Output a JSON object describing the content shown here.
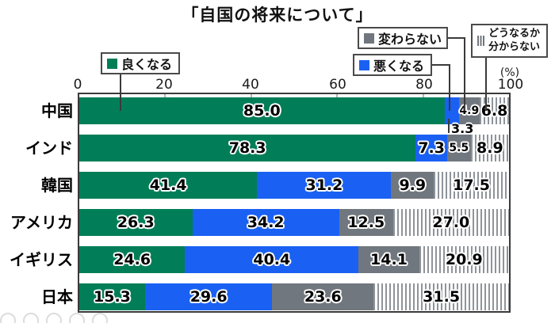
{
  "title": "「自国の将来について」",
  "axis": {
    "ticks": [
      "0",
      "20",
      "40",
      "60",
      "80",
      "100"
    ],
    "unit_label": "(%)"
  },
  "legend": {
    "better": "良くなる",
    "worse": "悪くなる",
    "same": "変わらない",
    "unknown_line1": "どうなるか",
    "unknown_line2": "分からない"
  },
  "colors": {
    "better": "#017e57",
    "worse": "#1a61f3",
    "same": "#71777e",
    "stripe": "#8e949a",
    "frame": "#3a3a3a"
  },
  "rows": [
    {
      "label": "中国",
      "display": [
        "85.0",
        "3.3",
        "4.9",
        "6.8"
      ]
    },
    {
      "label": "インド",
      "display": [
        "78.3",
        "7.3",
        "5.5",
        "8.9"
      ]
    },
    {
      "label": "韓国",
      "display": [
        "41.4",
        "31.2",
        "9.9",
        "17.5"
      ]
    },
    {
      "label": "アメリカ",
      "display": [
        "26.3",
        "34.2",
        "12.5",
        "27.0"
      ]
    },
    {
      "label": "イギリス",
      "display": [
        "24.6",
        "40.4",
        "14.1",
        "20.9"
      ]
    },
    {
      "label": "日本",
      "display": [
        "15.3",
        "29.6",
        "23.6",
        "31.5"
      ]
    }
  ],
  "chart_data": {
    "type": "bar",
    "orientation": "horizontal",
    "stacked": true,
    "title": "「自国の将来について」",
    "categories": [
      "中国",
      "インド",
      "韓国",
      "アメリカ",
      "イギリス",
      "日本"
    ],
    "series": [
      {
        "name": "良くなる",
        "color": "#017e57",
        "values": [
          85.0,
          78.3,
          41.4,
          26.3,
          24.6,
          15.3
        ]
      },
      {
        "name": "悪くなる",
        "color": "#1a61f3",
        "values": [
          3.3,
          7.3,
          31.2,
          34.2,
          40.4,
          29.6
        ]
      },
      {
        "name": "変わらない",
        "color": "#71777e",
        "values": [
          4.9,
          5.5,
          9.9,
          12.5,
          14.1,
          23.6
        ]
      },
      {
        "name": "どうなるか分からない",
        "pattern": "vertical-stripes",
        "stripe_color": "#8e949a",
        "values": [
          6.8,
          8.9,
          17.5,
          27.0,
          20.9,
          31.5
        ]
      }
    ],
    "xlim": [
      0,
      100
    ],
    "x_ticks": [
      0,
      20,
      40,
      60,
      80,
      100
    ],
    "unit": "(%)",
    "grid": false,
    "legend_position": "top"
  }
}
